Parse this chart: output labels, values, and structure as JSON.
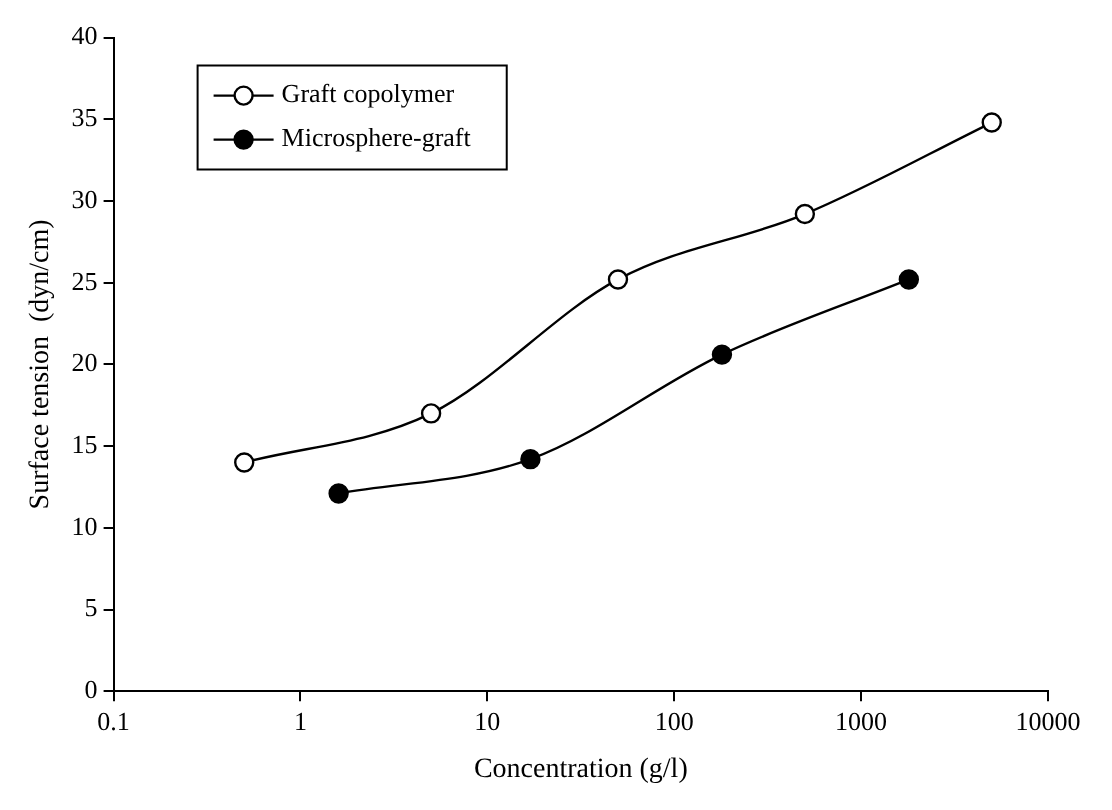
{
  "chart_data": {
    "type": "line",
    "xlabel": "Concentration (g/l)",
    "ylabel": "Surface tension  (dyn/cm)",
    "log": "x",
    "xlim": [
      0.1,
      10000
    ],
    "xticks": [
      0.1,
      1,
      10,
      100,
      1000,
      10000
    ],
    "ylim": [
      0,
      40
    ],
    "yticks": [
      0,
      5,
      10,
      15,
      20,
      25,
      30,
      35,
      40
    ],
    "grid": false,
    "legend": "top left",
    "marker": "circle",
    "line_style": "solid",
    "series": [
      {
        "name": "Graft copolymer",
        "color": "#000000",
        "x": [
          0.5,
          5,
          50,
          500,
          5000
        ],
        "values": [
          14,
          17,
          25.2,
          29.2,
          34.8
        ]
      },
      {
        "name": "Microsphere-graft",
        "color": "#000000",
        "x": [
          1.6,
          17,
          180,
          1800
        ],
        "values": [
          12.1,
          14.2,
          20.6,
          25.2
        ]
      }
    ]
  }
}
